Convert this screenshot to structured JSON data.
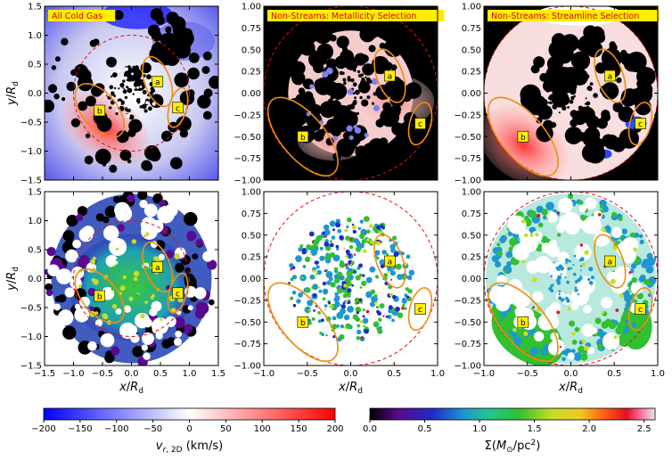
{
  "chart_data": {
    "type": "heatmap",
    "layout": "2x3 grid of maps with two shared colorbars",
    "columns": [
      {
        "title": "All Cold Gas",
        "xlim": [
          -1.5,
          1.5
        ],
        "ylim": [
          -1.5,
          1.5
        ],
        "xticks": [
          "−1.5",
          "−1.0",
          "−0.5",
          "0.0",
          "0.5",
          "1.0",
          "1.5"
        ],
        "yticks": [
          "1.5",
          "1.0",
          "0.5",
          "0.0",
          "−0.5",
          "−1.0",
          "−1.5"
        ],
        "regions": [
          {
            "label": "a",
            "center": [
              0.45,
              0.2
            ],
            "semi_axes": [
              0.22,
              0.45
            ],
            "angle_deg": 20
          },
          {
            "label": "b",
            "center": [
              -0.55,
              -0.3
            ],
            "semi_axes": [
              0.3,
              0.55
            ],
            "angle_deg": 40
          },
          {
            "label": "c",
            "center": [
              0.8,
              -0.25
            ],
            "semi_axes": [
              0.15,
              0.35
            ],
            "angle_deg": -15
          }
        ]
      },
      {
        "title": "Non-Streams: Metallicity Selection",
        "xlim": [
          -1.0,
          1.0
        ],
        "ylim": [
          -1.0,
          1.0
        ],
        "xticks": [
          "−1.0",
          "−0.5",
          "0.0",
          "0.5",
          "1.0"
        ],
        "yticks": [
          "1.00",
          "0.75",
          "0.50",
          "0.25",
          "0.00",
          "−0.25",
          "−0.50",
          "−0.75",
          "−1.00"
        ],
        "regions": [
          {
            "label": "a",
            "center": [
              0.45,
              0.2
            ],
            "semi_axes": [
              0.15,
              0.32
            ],
            "angle_deg": 20
          },
          {
            "label": "b",
            "center": [
              -0.55,
              -0.5
            ],
            "semi_axes": [
              0.25,
              0.55
            ],
            "angle_deg": 40
          },
          {
            "label": "c",
            "center": [
              0.8,
              -0.35
            ],
            "semi_axes": [
              0.12,
              0.25
            ],
            "angle_deg": -15
          }
        ]
      },
      {
        "title": "Non-Streams: Streamline Selection",
        "xlim": [
          -1.0,
          1.0
        ],
        "ylim": [
          -1.0,
          1.0
        ],
        "xticks": [
          "−1.0",
          "−0.5",
          "0.0",
          "0.5",
          "1.0"
        ],
        "yticks": [
          "1.00",
          "0.75",
          "0.50",
          "0.25",
          "0.00",
          "−0.25",
          "−0.50",
          "−0.75",
          "−1.00"
        ],
        "regions": [
          {
            "label": "a",
            "center": [
              0.45,
              0.2
            ],
            "semi_axes": [
              0.15,
              0.32
            ],
            "angle_deg": 20
          },
          {
            "label": "b",
            "center": [
              -0.55,
              -0.5
            ],
            "semi_axes": [
              0.25,
              0.55
            ],
            "angle_deg": 40
          },
          {
            "label": "c",
            "center": [
              0.8,
              -0.35
            ],
            "semi_axes": [
              0.12,
              0.25
            ],
            "angle_deg": -15
          }
        ]
      }
    ],
    "rows": [
      {
        "quantity": "radial velocity",
        "colorbar": "velocity"
      },
      {
        "quantity": "surface density",
        "colorbar": "density"
      }
    ],
    "xlabel": "x/R_d",
    "ylabel": "y/R_d",
    "dashed_circle_radius": 1.0,
    "colorbars": {
      "velocity": {
        "label": "v_{r,2D} (km/s)",
        "range": [
          -200,
          200
        ],
        "ticks": [
          "−200",
          "−150",
          "−100",
          "−50",
          "0",
          "50",
          "100",
          "150",
          "200"
        ],
        "colors": [
          "#0000ff",
          "#ffffff",
          "#ff0000"
        ]
      },
      "density": {
        "label": "Σ(M_⊙/pc²)",
        "range": [
          0.0,
          2.6
        ],
        "ticks": [
          "0.0",
          "0.5",
          "1.0",
          "1.5",
          "2.0",
          "2.5"
        ],
        "colors": [
          "#000000",
          "#5a0a8c",
          "#1e2cc8",
          "#1e96d2",
          "#20c88c",
          "#30c030",
          "#c8dc28",
          "#f0c820",
          "#ff6010",
          "#e01020",
          "#ff70a0",
          "#e8e8e8"
        ]
      }
    }
  }
}
